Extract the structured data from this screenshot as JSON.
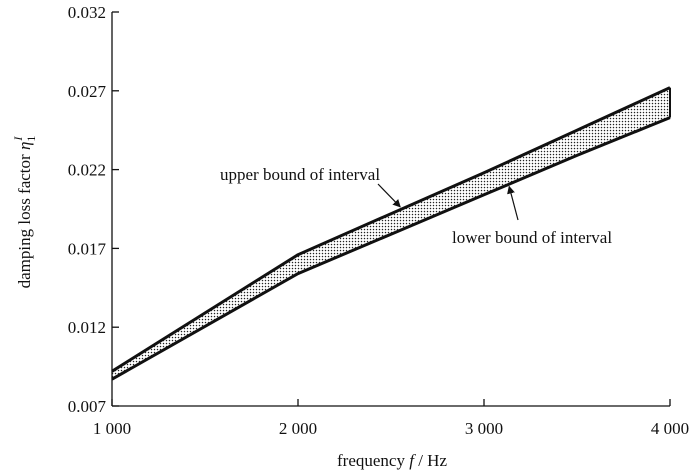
{
  "chart_data": {
    "type": "area",
    "xlabel_main": "frequency",
    "xlabel_var": "f",
    "xlabel_unit": "/ Hz",
    "ylabel_main": "damping loss factor",
    "ylabel_var": "η",
    "ylabel_sub": "1",
    "ylabel_sup": "I",
    "xlim": [
      1000,
      4000
    ],
    "ylim": [
      0.007,
      0.032
    ],
    "x_ticks": [
      1000,
      2000,
      3000,
      4000
    ],
    "x_tick_labels": [
      "1 000",
      "2 000",
      "3 000",
      "4 000"
    ],
    "y_ticks": [
      0.007,
      0.012,
      0.017,
      0.022,
      0.027,
      0.032
    ],
    "y_tick_labels": [
      "0.007",
      "0.012",
      "0.017",
      "0.022",
      "0.027",
      "0.032"
    ],
    "grid": false,
    "series": [
      {
        "name": "upper bound of interval",
        "x": [
          1000,
          2000,
          2500,
          3000,
          3500,
          4000
        ],
        "values": [
          0.0092,
          0.0166,
          0.0192,
          0.0218,
          0.0245,
          0.0272
        ]
      },
      {
        "name": "lower bound of interval",
        "x": [
          1000,
          2000,
          2500,
          3000,
          3500,
          4000
        ],
        "values": [
          0.0087,
          0.0154,
          0.0179,
          0.0204,
          0.0229,
          0.0253
        ]
      }
    ],
    "annotations": [
      {
        "text": "upper bound of interval",
        "target_series": 0,
        "target_x": 2560
      },
      {
        "text": "lower bound of interval",
        "target_series": 1,
        "target_x": 3130
      }
    ]
  }
}
